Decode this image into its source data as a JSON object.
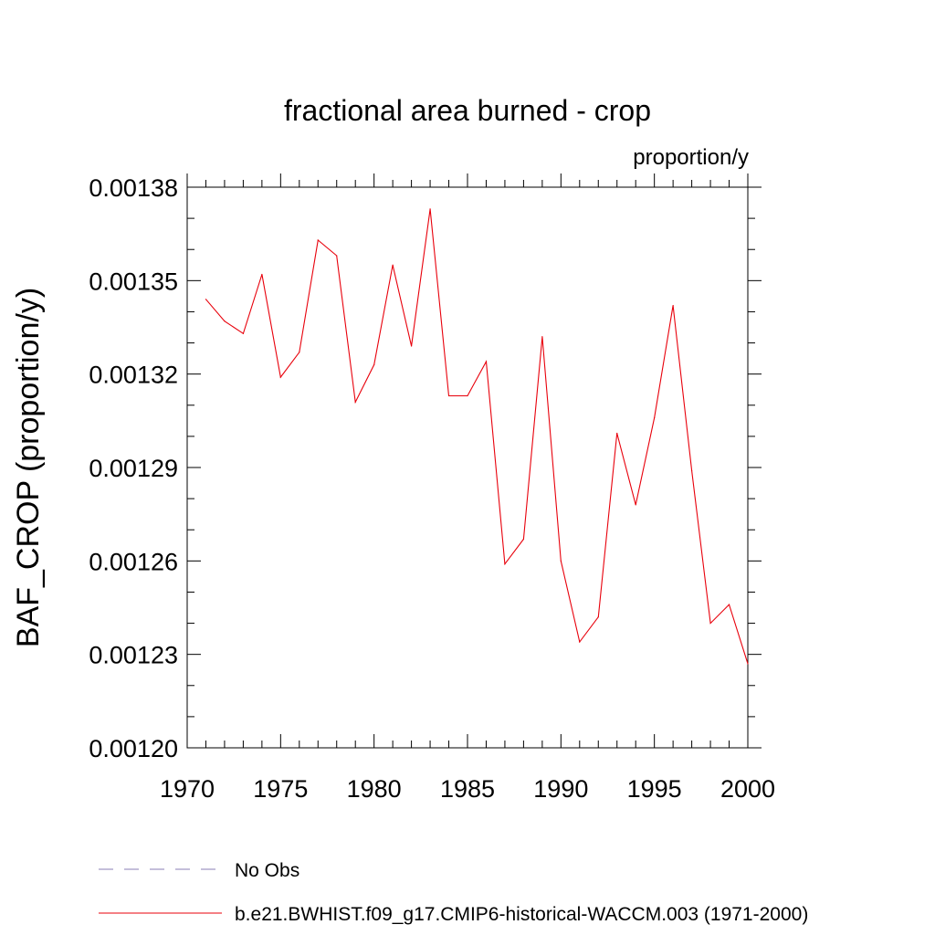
{
  "chart_data": {
    "type": "line",
    "title": "fractional area burned - crop",
    "units_label": "proportion/y",
    "ylabel": "BAF_CROP  (proportion/y)",
    "xlabel": "",
    "xlim": [
      1970,
      2000
    ],
    "ylim": [
      0.0012,
      0.00138
    ],
    "x_ticks": [
      "1970",
      "1975",
      "1980",
      "1985",
      "1990",
      "1995",
      "2000"
    ],
    "y_ticks": [
      "0.00120",
      "0.00123",
      "0.00126",
      "0.00129",
      "0.00132",
      "0.00135",
      "0.00138"
    ],
    "grid": false,
    "legend_position": "bottom",
    "series": [
      {
        "name": "No Obs",
        "color": "#8a7fb5",
        "style": "dashed",
        "x": [],
        "y": []
      },
      {
        "name": "b.e21.BWHIST.f09_g17.CMIP6-historical-WACCM.003 (1971-2000)",
        "color": "#e8000b",
        "style": "solid",
        "x": [
          1971,
          1972,
          1973,
          1974,
          1975,
          1976,
          1977,
          1978,
          1979,
          1980,
          1981,
          1982,
          1983,
          1984,
          1985,
          1986,
          1987,
          1988,
          1989,
          1990,
          1991,
          1992,
          1993,
          1994,
          1995,
          1996,
          1997,
          1998,
          1999,
          2000
        ],
        "y": [
          0.001344,
          0.001337,
          0.001333,
          0.001352,
          0.001319,
          0.001327,
          0.001363,
          0.001358,
          0.001311,
          0.001323,
          0.001355,
          0.001329,
          0.001373,
          0.001313,
          0.001313,
          0.001324,
          0.001259,
          0.001267,
          0.001332,
          0.00126,
          0.001234,
          0.001242,
          0.001301,
          0.001278,
          0.001306,
          0.001342,
          0.001289,
          0.00124,
          0.001246,
          0.001227
        ]
      }
    ]
  }
}
